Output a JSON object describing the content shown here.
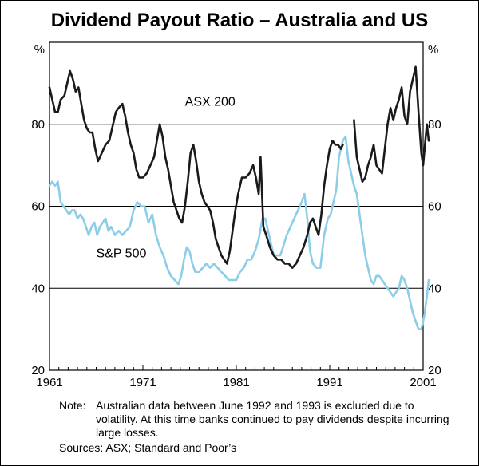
{
  "title": "Dividend Payout Ratio – Australia and US",
  "note_label": "Note:",
  "note_text": "Australian data between June 1992 and 1993 is excluded due to volatility. At this time banks continued to pay dividends despite incurring large losses.",
  "sources": "Sources: ASX; Standard and Poor’s",
  "chart_data": {
    "type": "line",
    "title": "Dividend Payout Ratio – Australia and US",
    "y_unit_left": "%",
    "y_unit_right": "%",
    "ylim": [
      20,
      100
    ],
    "xlim": [
      1961,
      2001
    ],
    "y_ticks": [
      20,
      40,
      60,
      80
    ],
    "x_ticks": [
      1961,
      1971,
      1981,
      1991,
      2001
    ],
    "grid": "horizontal at 40, 60, 80",
    "colors": {
      "ASX 200": "#1a1a1a",
      "S&P 500": "#8ccde8"
    },
    "series": [
      {
        "name": "ASX 200",
        "segments": [
          [
            [
              1961.0,
              89
            ],
            [
              1961.3,
              86
            ],
            [
              1961.6,
              83
            ],
            [
              1961.9,
              83
            ],
            [
              1962.2,
              86
            ],
            [
              1962.6,
              87
            ],
            [
              1962.9,
              90
            ],
            [
              1963.2,
              93
            ],
            [
              1963.5,
              91
            ],
            [
              1963.8,
              88
            ],
            [
              1964.1,
              89
            ],
            [
              1964.4,
              85
            ],
            [
              1964.7,
              81
            ],
            [
              1965.0,
              79
            ],
            [
              1965.3,
              78
            ],
            [
              1965.6,
              78
            ],
            [
              1965.9,
              74
            ],
            [
              1966.2,
              71
            ],
            [
              1966.6,
              73
            ],
            [
              1967.0,
              75
            ],
            [
              1967.4,
              76
            ],
            [
              1967.8,
              80
            ],
            [
              1968.1,
              83
            ],
            [
              1968.4,
              84
            ],
            [
              1968.8,
              85
            ],
            [
              1969.1,
              82
            ],
            [
              1969.4,
              78
            ],
            [
              1969.7,
              75
            ],
            [
              1970.0,
              73
            ],
            [
              1970.3,
              69
            ],
            [
              1970.6,
              67
            ],
            [
              1971.0,
              67
            ],
            [
              1971.4,
              68
            ],
            [
              1971.8,
              70
            ],
            [
              1972.2,
              72
            ],
            [
              1972.5,
              76
            ],
            [
              1972.8,
              80
            ],
            [
              1973.1,
              77
            ],
            [
              1973.4,
              72
            ],
            [
              1973.7,
              69
            ],
            [
              1974.0,
              65
            ],
            [
              1974.3,
              61
            ],
            [
              1974.6,
              59
            ],
            [
              1974.9,
              57
            ],
            [
              1975.2,
              56
            ],
            [
              1975.5,
              60
            ],
            [
              1975.8,
              66
            ],
            [
              1976.1,
              73
            ],
            [
              1976.4,
              75
            ],
            [
              1976.7,
              71
            ],
            [
              1977.0,
              66
            ],
            [
              1977.3,
              63
            ],
            [
              1977.6,
              61
            ],
            [
              1977.9,
              60
            ],
            [
              1978.2,
              59
            ],
            [
              1978.5,
              56
            ],
            [
              1978.8,
              52
            ],
            [
              1979.1,
              50
            ],
            [
              1979.4,
              48
            ],
            [
              1979.7,
              47
            ],
            [
              1980.0,
              46
            ],
            [
              1980.3,
              49
            ],
            [
              1980.6,
              54
            ],
            [
              1980.9,
              59
            ],
            [
              1981.2,
              63
            ],
            [
              1981.6,
              67
            ],
            [
              1982.0,
              67
            ],
            [
              1982.4,
              68
            ],
            [
              1982.8,
              70
            ],
            [
              1983.1,
              67
            ],
            [
              1983.4,
              63
            ],
            [
              1983.6,
              72
            ],
            [
              1983.9,
              55
            ],
            [
              1984.2,
              53
            ],
            [
              1984.6,
              50
            ],
            [
              1985.0,
              48
            ],
            [
              1985.4,
              47
            ],
            [
              1985.8,
              47
            ],
            [
              1986.2,
              46
            ],
            [
              1986.6,
              46
            ],
            [
              1987.0,
              45
            ],
            [
              1987.4,
              46
            ],
            [
              1987.8,
              48
            ],
            [
              1988.2,
              50
            ],
            [
              1988.6,
              53
            ],
            [
              1988.9,
              56
            ],
            [
              1989.2,
              57
            ],
            [
              1989.5,
              55
            ],
            [
              1989.8,
              53
            ],
            [
              1990.1,
              58
            ],
            [
              1990.4,
              65
            ],
            [
              1990.7,
              70
            ],
            [
              1991.0,
              74
            ],
            [
              1991.3,
              76
            ],
            [
              1991.6,
              75
            ],
            [
              1991.9,
              75
            ],
            [
              1992.2,
              74
            ],
            [
              1992.4,
              75
            ]
          ],
          [
            [
              1993.6,
              81
            ],
            [
              1993.9,
              72
            ],
            [
              1994.2,
              69
            ],
            [
              1994.5,
              66
            ],
            [
              1994.8,
              67
            ],
            [
              1995.1,
              70
            ],
            [
              1995.4,
              72
            ],
            [
              1995.7,
              75
            ],
            [
              1996.0,
              70
            ],
            [
              1996.3,
              69
            ],
            [
              1996.6,
              68
            ],
            [
              1996.9,
              74
            ],
            [
              1997.2,
              80
            ],
            [
              1997.5,
              84
            ],
            [
              1997.8,
              81
            ],
            [
              1998.1,
              84
            ],
            [
              1998.4,
              86
            ],
            [
              1998.7,
              89
            ],
            [
              1999.0,
              82
            ],
            [
              1999.3,
              80
            ],
            [
              1999.6,
              88
            ],
            [
              1999.9,
              91
            ],
            [
              2000.2,
              94
            ],
            [
              2000.5,
              83
            ],
            [
              2000.8,
              73
            ],
            [
              2001.0,
              70
            ],
            [
              2001.2,
              75
            ],
            [
              2001.4,
              80
            ],
            [
              2001.6,
              76
            ]
          ]
        ]
      },
      {
        "name": "S&P 500",
        "segments": [
          [
            [
              1961.0,
              65
            ],
            [
              1961.3,
              66
            ],
            [
              1961.6,
              65
            ],
            [
              1961.9,
              66
            ],
            [
              1962.2,
              61
            ],
            [
              1962.5,
              60
            ],
            [
              1962.8,
              59
            ],
            [
              1963.1,
              58
            ],
            [
              1963.4,
              59
            ],
            [
              1963.7,
              59
            ],
            [
              1964.0,
              57
            ],
            [
              1964.3,
              58
            ],
            [
              1964.6,
              57
            ],
            [
              1964.9,
              55
            ],
            [
              1965.2,
              53
            ],
            [
              1965.5,
              55
            ],
            [
              1965.8,
              56
            ],
            [
              1966.1,
              53
            ],
            [
              1966.4,
              55
            ],
            [
              1966.7,
              56
            ],
            [
              1967.0,
              57
            ],
            [
              1967.3,
              54
            ],
            [
              1967.6,
              55
            ],
            [
              1968.0,
              53
            ],
            [
              1968.4,
              54
            ],
            [
              1968.8,
              53
            ],
            [
              1969.2,
              54
            ],
            [
              1969.6,
              55
            ],
            [
              1970.0,
              59
            ],
            [
              1970.4,
              61
            ],
            [
              1970.8,
              60
            ],
            [
              1971.2,
              60
            ],
            [
              1971.6,
              56
            ],
            [
              1972.0,
              58
            ],
            [
              1972.4,
              53
            ],
            [
              1972.8,
              50
            ],
            [
              1973.2,
              48
            ],
            [
              1973.6,
              45
            ],
            [
              1974.0,
              43
            ],
            [
              1974.4,
              42
            ],
            [
              1974.8,
              41
            ],
            [
              1975.1,
              43
            ],
            [
              1975.4,
              47
            ],
            [
              1975.7,
              50
            ],
            [
              1976.0,
              49
            ],
            [
              1976.3,
              46
            ],
            [
              1976.6,
              44
            ],
            [
              1977.0,
              44
            ],
            [
              1977.4,
              45
            ],
            [
              1977.8,
              46
            ],
            [
              1978.2,
              45
            ],
            [
              1978.6,
              46
            ],
            [
              1979.0,
              45
            ],
            [
              1979.4,
              44
            ],
            [
              1979.8,
              43
            ],
            [
              1980.2,
              42
            ],
            [
              1980.6,
              42
            ],
            [
              1981.0,
              42
            ],
            [
              1981.4,
              44
            ],
            [
              1981.8,
              45
            ],
            [
              1982.2,
              47
            ],
            [
              1982.6,
              47
            ],
            [
              1983.0,
              49
            ],
            [
              1983.4,
              52
            ],
            [
              1983.8,
              57
            ],
            [
              1984.1,
              57
            ],
            [
              1984.4,
              54
            ],
            [
              1984.7,
              51
            ],
            [
              1985.0,
              48
            ],
            [
              1985.3,
              48
            ],
            [
              1985.7,
              48
            ],
            [
              1986.0,
              50
            ],
            [
              1986.4,
              53
            ],
            [
              1986.8,
              55
            ],
            [
              1987.2,
              57
            ],
            [
              1987.6,
              59
            ],
            [
              1988.0,
              61
            ],
            [
              1988.3,
              63
            ],
            [
              1988.6,
              57
            ],
            [
              1988.9,
              49
            ],
            [
              1989.2,
              46
            ],
            [
              1989.6,
              45
            ],
            [
              1990.0,
              45
            ],
            [
              1990.4,
              53
            ],
            [
              1990.8,
              57
            ],
            [
              1991.1,
              58
            ],
            [
              1991.4,
              61
            ],
            [
              1991.7,
              64
            ],
            [
              1992.0,
              72
            ],
            [
              1992.4,
              76
            ],
            [
              1992.7,
              77
            ],
            [
              1993.0,
              71
            ],
            [
              1993.3,
              68
            ],
            [
              1993.6,
              65
            ],
            [
              1993.9,
              63
            ],
            [
              1994.2,
              58
            ],
            [
              1994.5,
              53
            ],
            [
              1994.8,
              48
            ],
            [
              1995.1,
              45
            ],
            [
              1995.4,
              42
            ],
            [
              1995.7,
              41
            ],
            [
              1996.0,
              43
            ],
            [
              1996.3,
              43
            ],
            [
              1996.6,
              42
            ],
            [
              1996.9,
              41
            ],
            [
              1997.2,
              40
            ],
            [
              1997.5,
              39
            ],
            [
              1997.8,
              38
            ],
            [
              1998.1,
              39
            ],
            [
              1998.4,
              40
            ],
            [
              1998.7,
              43
            ],
            [
              1999.0,
              42
            ],
            [
              1999.3,
              40
            ],
            [
              1999.6,
              37
            ],
            [
              1999.9,
              34
            ],
            [
              2000.2,
              32
            ],
            [
              2000.5,
              30
            ],
            [
              2000.8,
              30
            ],
            [
              2001.1,
              33
            ],
            [
              2001.4,
              38
            ],
            [
              2001.6,
              42
            ]
          ]
        ]
      }
    ],
    "labels": [
      {
        "series": "ASX 200",
        "text": "ASX 200",
        "at": [
          1975.5,
          84.5
        ]
      },
      {
        "series": "S&P 500",
        "text": "S&P 500",
        "at": [
          1966.0,
          47.5
        ]
      }
    ]
  }
}
